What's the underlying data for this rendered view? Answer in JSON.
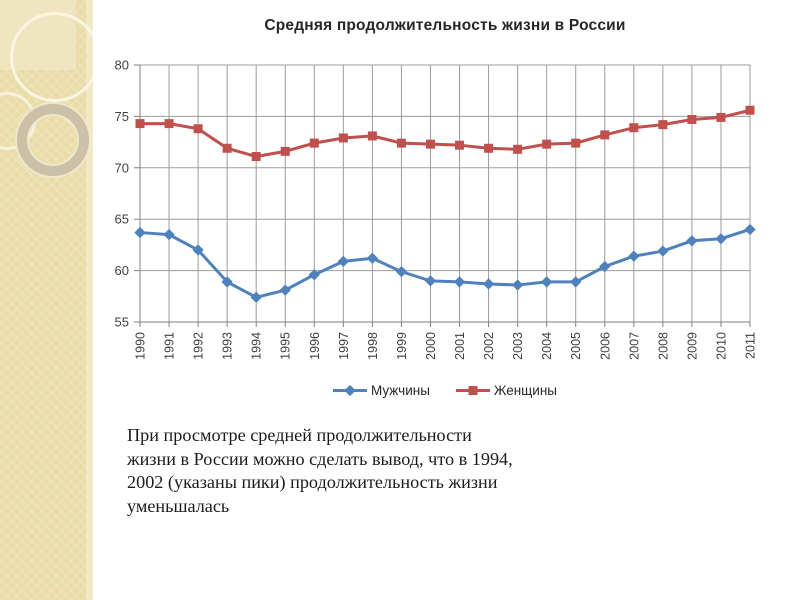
{
  "chart_data": {
    "type": "line",
    "title": "Средняя продолжительность жизни в России",
    "xlabel": "",
    "ylabel": "",
    "categories": [
      "1990",
      "1991",
      "1992",
      "1993",
      "1994",
      "1995",
      "1996",
      "1997",
      "1998",
      "1999",
      "2000",
      "2001",
      "2002",
      "2003",
      "2004",
      "2005",
      "2006",
      "2007",
      "2008",
      "2009",
      "2010",
      "2011"
    ],
    "series": [
      {
        "name": "Мужчины",
        "color": "#4F81BD",
        "marker": "diamond",
        "values": [
          63.7,
          63.5,
          62.0,
          58.9,
          57.4,
          58.1,
          59.6,
          60.9,
          61.2,
          59.9,
          59.0,
          58.9,
          58.7,
          58.6,
          58.9,
          58.9,
          60.4,
          61.4,
          61.9,
          62.9,
          63.1,
          64.0
        ]
      },
      {
        "name": "Женщины",
        "color": "#C0504D",
        "marker": "square",
        "values": [
          74.3,
          74.3,
          73.8,
          71.9,
          71.1,
          71.6,
          72.4,
          72.9,
          73.1,
          72.4,
          72.3,
          72.2,
          71.9,
          71.8,
          72.3,
          72.4,
          73.2,
          73.9,
          74.2,
          74.7,
          74.9,
          75.6
        ]
      }
    ],
    "ylim": [
      55,
      80
    ],
    "yticks": [
      55,
      60,
      65,
      70,
      75,
      80
    ],
    "grid": true,
    "legend_position": "bottom",
    "grid_color": "#9b9b9b",
    "axis_color": "#7f7f7f",
    "label_color": "#3f3f3f"
  },
  "caption": {
    "lines": [
      "При просмотре средней продолжительности",
      "жизни в России можно сделать вывод, что в 1994,",
      "2002 (указаны пики) продолжительность жизни",
      "уменьшалась"
    ]
  },
  "decor": {
    "sidebar_color": "#EADCA8",
    "ring_color": "#CBC1A9"
  }
}
